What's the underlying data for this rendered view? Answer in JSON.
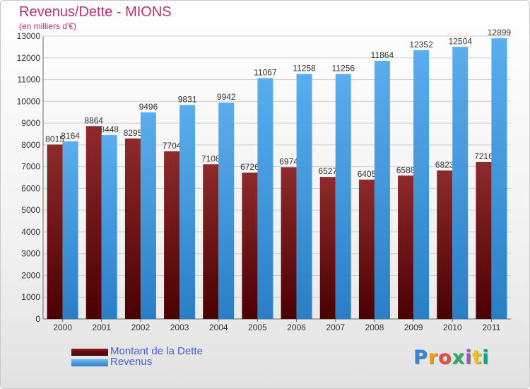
{
  "title": "Revenus/Dette - MIONS",
  "subtitle": "(en milliers d'€)",
  "chart_data": {
    "type": "bar",
    "categories": [
      "2000",
      "2001",
      "2002",
      "2003",
      "2004",
      "2005",
      "2006",
      "2007",
      "2008",
      "2009",
      "2010",
      "2011"
    ],
    "series": [
      {
        "name": "Montant de la Dette",
        "color": "#7a0f12",
        "values": [
          8015,
          8864,
          8295,
          7704,
          7108,
          6726,
          6974,
          6527,
          6405,
          6588,
          6823,
          7216
        ]
      },
      {
        "name": "Revenus",
        "color": "#3f9be3",
        "values": [
          8164,
          8448,
          9496,
          9831,
          9942,
          11067,
          11258,
          11256,
          11864,
          12352,
          12504,
          12899
        ]
      }
    ],
    "ylim": [
      0,
      13000
    ],
    "yticks": [
      0,
      1000,
      2000,
      3000,
      4000,
      5000,
      6000,
      7000,
      8000,
      9000,
      10000,
      11000,
      12000,
      13000
    ],
    "grid": true,
    "legend": "bottom-left"
  },
  "brand": {
    "letters": [
      "P",
      "r",
      "o",
      "x",
      "i",
      "t",
      "i"
    ],
    "colors": [
      "#2e86de",
      "#f39c12",
      "#e74c3c",
      "#27ae60",
      "#9b59b6",
      "#f1c40f",
      "#16a085"
    ]
  }
}
